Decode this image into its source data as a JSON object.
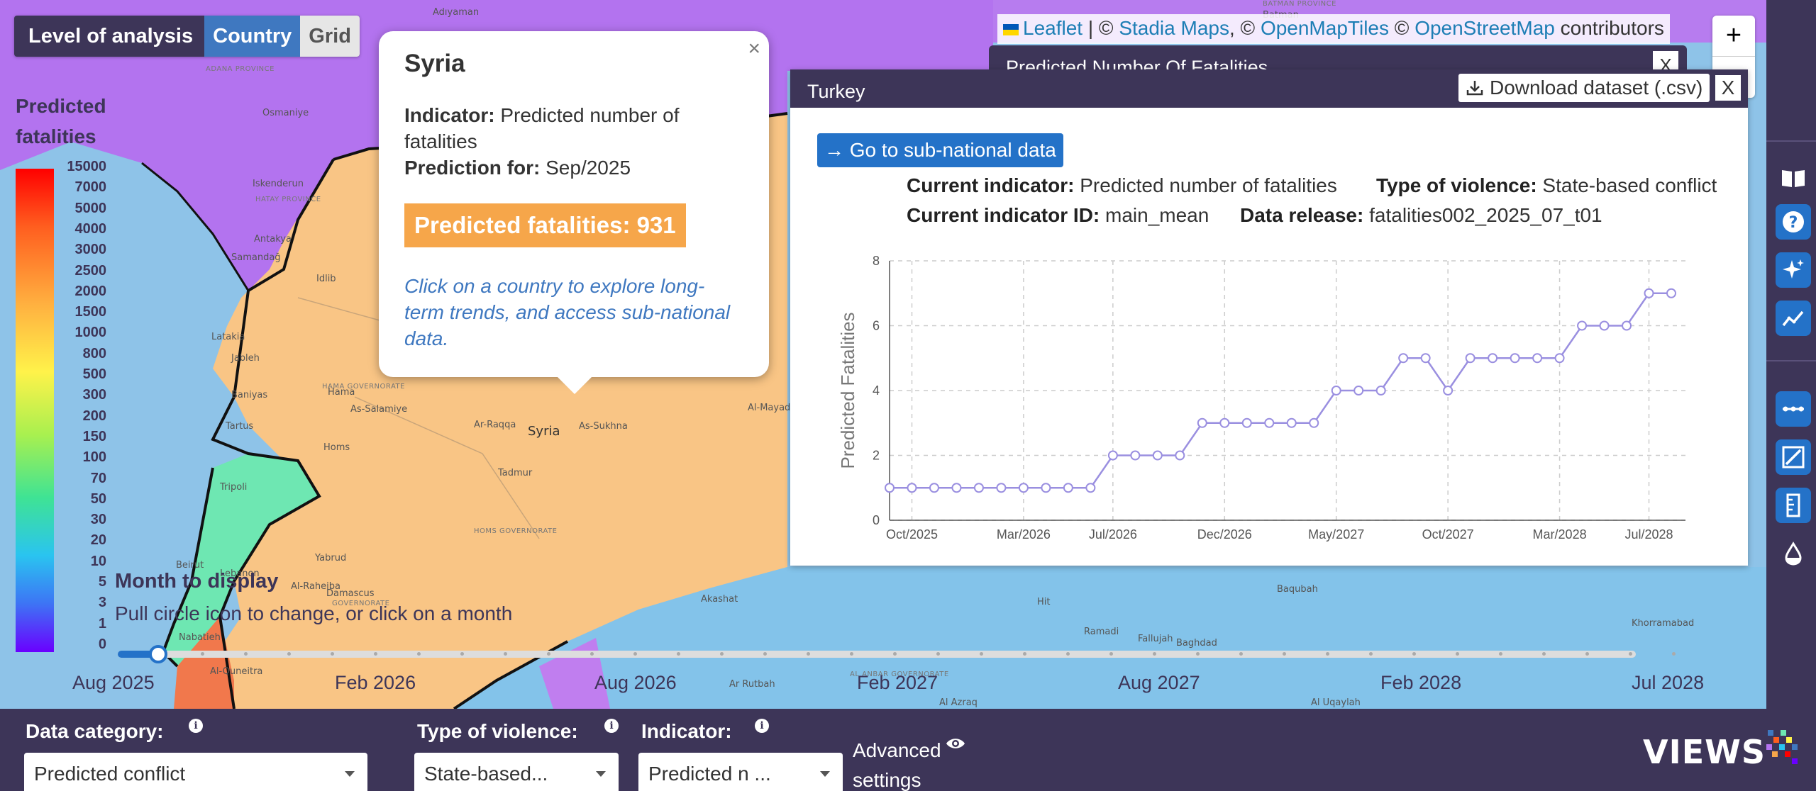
{
  "map": {
    "labels": [
      {
        "text": "Adıyaman",
        "cls": "map-label"
      },
      {
        "text": "Osmaniye",
        "cls": "map-label"
      },
      {
        "text": "ADANA PROVINCE",
        "cls": "map-label small"
      },
      {
        "text": "Iskenderun",
        "cls": "map-label"
      },
      {
        "text": "HATAY PROVINCE",
        "cls": "map-label small"
      },
      {
        "text": "Antakya",
        "cls": "map-label"
      },
      {
        "text": "Samandağ",
        "cls": "map-label"
      },
      {
        "text": "Idlib",
        "cls": "map-label"
      },
      {
        "text": "Latakia",
        "cls": "map-label"
      },
      {
        "text": "Jableh",
        "cls": "map-label"
      },
      {
        "text": "Baniyas",
        "cls": "map-label"
      },
      {
        "text": "Hama",
        "cls": "map-label"
      },
      {
        "text": "HAMA GOVERNORATE",
        "cls": "map-label small"
      },
      {
        "text": "As-Salamiye",
        "cls": "map-label"
      },
      {
        "text": "Tartus",
        "cls": "map-label"
      },
      {
        "text": "Homs",
        "cls": "map-label"
      },
      {
        "text": "Syria",
        "cls": "map-label big"
      },
      {
        "text": "Ar-Raqqa",
        "cls": "map-label"
      },
      {
        "text": "As-Sukhna",
        "cls": "map-label"
      },
      {
        "text": "Al-Mayadin",
        "cls": "map-label"
      },
      {
        "text": "Tadmur",
        "cls": "map-label"
      },
      {
        "text": "HOMS GOVERNORATE",
        "cls": "map-label small"
      },
      {
        "text": "Tripoli",
        "cls": "map-label"
      },
      {
        "text": "Yabrud",
        "cls": "map-label"
      },
      {
        "text": "Beirut",
        "cls": "map-label"
      },
      {
        "text": "Lebanon",
        "cls": "map-label"
      },
      {
        "text": "Nabatieh",
        "cls": "map-label"
      },
      {
        "text": "Al-Raheiba",
        "cls": "map-label"
      },
      {
        "text": "Damascus",
        "cls": "map-label"
      },
      {
        "text": "GOVERNORATE",
        "cls": "map-label small"
      },
      {
        "text": "Al-Quneitra",
        "cls": "map-label"
      },
      {
        "text": "Akashat",
        "cls": "map-label"
      },
      {
        "text": "Ar Rutbah",
        "cls": "map-label"
      },
      {
        "text": "AL ANBAR GOVERNORATE",
        "cls": "map-label small"
      },
      {
        "text": "Ramadi",
        "cls": "map-label"
      },
      {
        "text": "Fallujah",
        "cls": "map-label"
      },
      {
        "text": "Baghdad",
        "cls": "map-label"
      },
      {
        "text": "Baqubah",
        "cls": "map-label"
      },
      {
        "text": "Hit",
        "cls": "map-label"
      },
      {
        "text": "Khorramabad",
        "cls": "map-label"
      },
      {
        "text": "Al Azraq",
        "cls": "map-label"
      },
      {
        "text": "Al Uqaylah",
        "cls": "map-label"
      },
      {
        "text": "Batman",
        "cls": "map-label"
      },
      {
        "text": "BATMAN PROVINCE",
        "cls": "map-label small"
      }
    ]
  },
  "level": {
    "label": "Level of analysis",
    "options": [
      "Country",
      "Grid"
    ]
  },
  "legend": {
    "title_line1": "Predicted",
    "title_line2": "fatalities",
    "ticks": [
      "15000",
      "7000",
      "5000",
      "4000",
      "3000",
      "2500",
      "2000",
      "1500",
      "1000",
      "800",
      "500",
      "300",
      "200",
      "150",
      "100",
      "70",
      "50",
      "30",
      "20",
      "10",
      "5",
      "3",
      "1",
      "0"
    ]
  },
  "month": {
    "title": "Month to display",
    "subtitle": "Pull circle icon to change, or click on a month",
    "labels": [
      "Aug 2025",
      "Feb 2026",
      "Aug 2026",
      "Feb 2027",
      "Aug 2027",
      "Feb 2028",
      "Jul 2028"
    ]
  },
  "popup": {
    "close": "×",
    "title": "Syria",
    "indicator_label": "Indicator:",
    "indicator_value": " Predicted number of fatalities",
    "prediction_label": "Prediction for:",
    "prediction_value": " Sep/2025",
    "badge": "Predicted fatalities: 931",
    "hint": "Click on a country to explore long-term trends, and access sub-national data."
  },
  "attribution": {
    "leaflet": "Leaflet",
    "sep1": " | © ",
    "stadia": "Stadia Maps",
    "sep2": ", © ",
    "omt": "OpenMapTiles",
    "sep3": " © ",
    "osm": "OpenStreetMap",
    "suffix": " contributors"
  },
  "zoom": {
    "in": "+"
  },
  "back_panel": {
    "title": "Predicted Number Of Fatalities",
    "close": "X"
  },
  "panel": {
    "title": "Turkey",
    "download": "Download dataset (.csv)",
    "close": "X",
    "subnat": "→ Go to sub-national data",
    "cur_ind_label": "Current indicator:",
    "cur_ind_value": " Predicted number of fatalities",
    "tov_label": "Type of violence:",
    "tov_value": " State-based conflict",
    "cur_id_label": "Current indicator ID:",
    "cur_id_value": " main_mean",
    "release_label": "Data release:",
    "release_value": " fatalities002_2025_07_t01"
  },
  "chart_data": {
    "type": "line",
    "ylabel": "Predicted Fatalities",
    "ylim": [
      0,
      8
    ],
    "yticks": [
      "0",
      "2",
      "4",
      "6",
      "8"
    ],
    "xticks": [
      "Oct/2025",
      "Mar/2026",
      "Jul/2026",
      "Dec/2026",
      "May/2027",
      "Oct/2027",
      "Mar/2028",
      "Jul/2028"
    ],
    "xtick_index": [
      1,
      6,
      10,
      15,
      20,
      25,
      30,
      34
    ],
    "values": [
      1,
      1,
      1,
      1,
      1,
      1,
      1,
      1,
      1,
      1,
      2,
      2,
      2,
      2,
      3,
      3,
      3,
      3,
      3,
      3,
      4,
      4,
      4,
      5,
      5,
      4,
      5,
      5,
      5,
      5,
      5,
      6,
      6,
      6,
      7,
      7
    ],
    "color": "#9a8fe0",
    "grid": true
  },
  "bottom": {
    "data_category_label": "Data category:",
    "data_category_value": "Predicted conflict",
    "tov_label": "Type of violence:",
    "tov_value": "State-based...",
    "indicator_label": "Indicator:",
    "indicator_value": "Predicted n ...",
    "advanced": "Advanced settings",
    "logo": "VIEWS"
  },
  "colors": {
    "accent": "#2472c8",
    "panel": "#3d3558",
    "badge": "#f6a64a"
  }
}
